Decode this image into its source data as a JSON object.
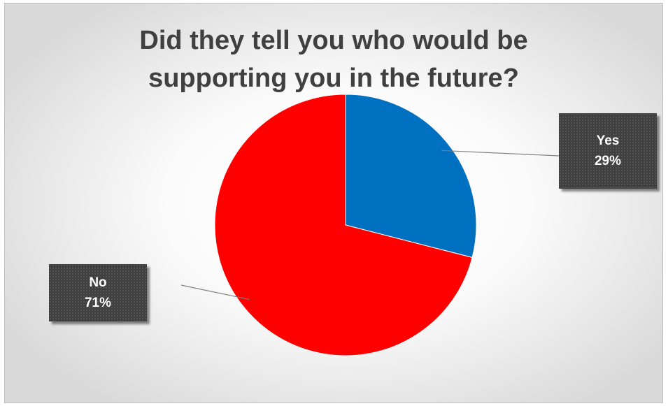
{
  "chart_data": {
    "type": "pie",
    "title": "Did they tell you who would be supporting you in the future?",
    "title_lines": [
      "Did they tell you who would be",
      "supporting you in the future?"
    ],
    "slices": [
      {
        "label": "Yes",
        "value": 29,
        "display": "29%",
        "color": "#0070C0"
      },
      {
        "label": "No",
        "value": 71,
        "display": "71%",
        "color": "#FF0000"
      }
    ],
    "start_angle_deg": 0,
    "direction": "clockwise",
    "labels": "callouts with leader lines"
  }
}
